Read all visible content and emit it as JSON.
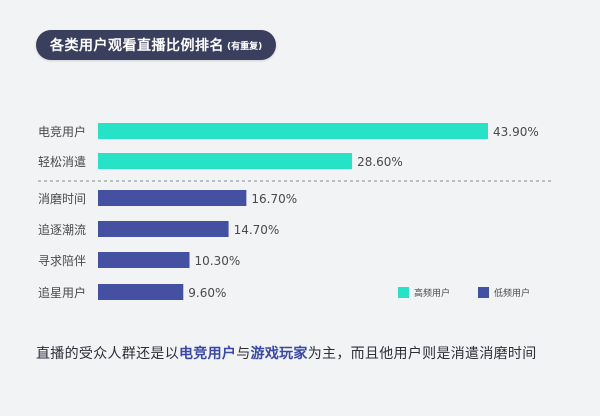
{
  "title": {
    "main": "各类用户观看直播比例排名",
    "note": "(有重复)"
  },
  "colors": {
    "high": "#26e3c8",
    "low": "#4451a3",
    "separator": "#8a8a8a",
    "text": "#4a4a4a"
  },
  "chart_data": {
    "type": "bar",
    "orientation": "horizontal",
    "title": "各类用户观看直播比例排名",
    "categories": [
      "电竞用户",
      "轻松消遣",
      "消磨时间",
      "追逐潮流",
      "寻求陪伴",
      "追星用户"
    ],
    "values": [
      43.9,
      28.6,
      16.7,
      14.7,
      10.3,
      9.6
    ],
    "value_labels": [
      "43.90%",
      "28.60%",
      "16.70%",
      "14.70%",
      "10.30%",
      "9.60%"
    ],
    "group": [
      "high",
      "high",
      "low",
      "low",
      "low",
      "low"
    ],
    "legend": [
      {
        "key": "high",
        "label": "高频用户"
      },
      {
        "key": "low",
        "label": "低频用户"
      }
    ],
    "legend_position": "bottom-right",
    "xlim": [
      0,
      43.9
    ],
    "grid": false,
    "xlabel": "",
    "ylabel": ""
  },
  "caption": {
    "part1": "直播的受众人群还是以",
    "hl1": "电竞用户",
    "part2": "与",
    "hl2": "游戏玩家",
    "part3": "为主，而且他用户则是消遣消磨时间"
  }
}
